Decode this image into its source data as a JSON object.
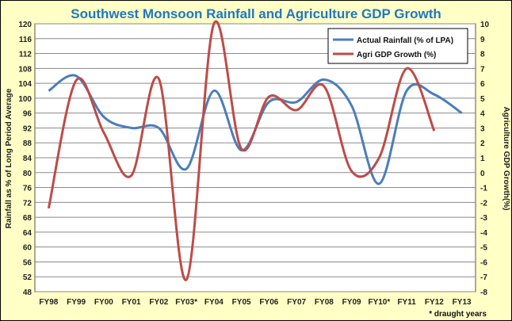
{
  "chart_data": {
    "type": "line",
    "title": "Southwest Monsoon Rainfall and Agriculture GDP Growth",
    "categories": [
      "FY98",
      "FY99",
      "FY00",
      "FY01",
      "FY02",
      "FY03*",
      "FY04",
      "FY05",
      "FY06",
      "FY07",
      "FY08",
      "FY09",
      "FY10*",
      "FY11",
      "FY12",
      "FY13"
    ],
    "ylabel": "Rainfall as % of Long Period Average",
    "y2label": "Agriculture GDP Growth(%)",
    "ylim": [
      48,
      120
    ],
    "y2lim": [
      -8,
      10
    ],
    "yticks": [
      "48",
      "52",
      "56",
      "60",
      "64",
      "68",
      "72",
      "76",
      "80",
      "84",
      "88",
      "92",
      "96",
      "100",
      "104",
      "108",
      "112",
      "116",
      "120"
    ],
    "y2ticks": [
      "-8",
      "-7",
      "-6",
      "-5",
      "-4",
      "-3",
      "-2",
      "-1",
      "0",
      "1",
      "2",
      "3",
      "4",
      "5",
      "6",
      "7",
      "8",
      "9",
      "10"
    ],
    "grid": true,
    "legend_position": "top-right",
    "series": [
      {
        "name": "Actual Rainfall (% of LPA)",
        "axis": "left",
        "color": "#4a7ebb",
        "values": [
          102,
          106,
          95,
          92,
          92,
          81,
          102,
          86,
          99,
          99,
          105,
          98,
          77,
          102,
          101,
          96
        ]
      },
      {
        "name": "Agri GDP Growth (%)",
        "axis": "right",
        "color": "#be4b48",
        "values": [
          -2.4,
          6.2,
          2.7,
          -0.2,
          6.3,
          -7.2,
          10.0,
          1.6,
          5.1,
          4.2,
          5.8,
          0.1,
          1.0,
          7.0,
          2.8,
          null
        ]
      }
    ],
    "annotation": "* draught years"
  }
}
